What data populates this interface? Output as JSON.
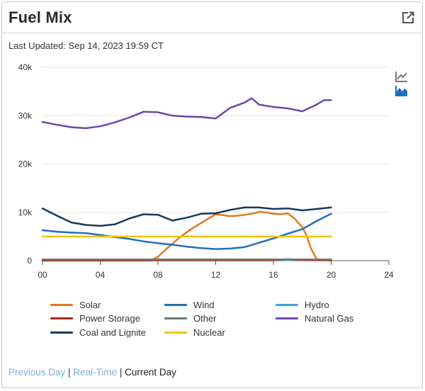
{
  "header": {
    "title": "Fuel Mix"
  },
  "last_updated": "Last Updated: Sep 14, 2023 19:59 CT",
  "footer": {
    "previous_day": "Previous Day",
    "separator1": " | ",
    "real_time": "Real-Time",
    "separator2": " | ",
    "current_day": "Current Day",
    "link_color": "#7fb0d8"
  },
  "tool_icons": [
    "line-chart-icon",
    "area-chart-icon"
  ],
  "chart_data": {
    "type": "line",
    "x_range": [
      0,
      24
    ],
    "x_ticks": [
      "00",
      "04",
      "08",
      "12",
      "16",
      "20",
      "24"
    ],
    "x_tick_values": [
      0,
      4,
      8,
      12,
      16,
      20,
      24
    ],
    "ylim": [
      0,
      40000
    ],
    "y_ticks": [
      "0",
      "10k",
      "20k",
      "30k",
      "40k"
    ],
    "y_tick_values": [
      0,
      10000,
      20000,
      30000,
      40000
    ],
    "grid": true,
    "legend_position": "bottom",
    "series": [
      {
        "name": "Solar",
        "color": "#e07a1f",
        "x": [
          0,
          7.5,
          8,
          8.5,
          9,
          9.5,
          10,
          10.5,
          11,
          11.5,
          12,
          12.5,
          13,
          13.5,
          14,
          14.5,
          15,
          15.5,
          16,
          16.5,
          17,
          17.5,
          18,
          18.3,
          18.6,
          19,
          20
        ],
        "y": [
          0,
          0,
          800,
          2200,
          3500,
          4800,
          5900,
          6900,
          7800,
          8700,
          9600,
          9400,
          9200,
          9300,
          9500,
          9700,
          10100,
          10000,
          9700,
          9600,
          9800,
          8600,
          6900,
          5200,
          2500,
          300,
          0
        ]
      },
      {
        "name": "Wind",
        "color": "#1f6fc0",
        "x": [
          0,
          1,
          2,
          3,
          4,
          5,
          6,
          7,
          8,
          9,
          10,
          11,
          12,
          13,
          14,
          15,
          16,
          17,
          18,
          19,
          20
        ],
        "y": [
          6300,
          6000,
          5800,
          5700,
          5300,
          4900,
          4500,
          4000,
          3600,
          3300,
          2900,
          2600,
          2400,
          2500,
          2800,
          3700,
          4600,
          5600,
          6500,
          8200,
          9700
        ]
      },
      {
        "name": "Hydro",
        "color": "#3aa6d6",
        "x": [
          0,
          20
        ],
        "y": [
          150,
          150
        ]
      },
      {
        "name": "Power Storage",
        "color": "#a52a1c",
        "x": [
          0,
          16,
          16.5,
          17,
          17.5,
          18,
          20
        ],
        "y": [
          80,
          80,
          200,
          300,
          200,
          120,
          80
        ]
      },
      {
        "name": "Other",
        "color": "#6e7a78",
        "x": [
          0,
          20
        ],
        "y": [
          250,
          250
        ]
      },
      {
        "name": "Natural Gas",
        "color": "#6a4aaa",
        "x": [
          0,
          1,
          2,
          3,
          4,
          5,
          6,
          7,
          8,
          9,
          10,
          11,
          12,
          13,
          14,
          14.5,
          15,
          16,
          17,
          18,
          19,
          19.5,
          20
        ],
        "y": [
          28700,
          28100,
          27600,
          27400,
          27800,
          28600,
          29600,
          30800,
          30700,
          30000,
          29800,
          29700,
          29400,
          31600,
          32700,
          33600,
          32300,
          31800,
          31500,
          30900,
          32300,
          33200,
          33200
        ]
      },
      {
        "name": "Coal and Lignite",
        "color": "#163a5c",
        "x": [
          0,
          1,
          2,
          3,
          4,
          5,
          6,
          7,
          8,
          9,
          10,
          11,
          12,
          13,
          14,
          15,
          16,
          17,
          18,
          19,
          20
        ],
        "y": [
          10800,
          9300,
          7900,
          7400,
          7200,
          7500,
          8700,
          9600,
          9500,
          8300,
          8900,
          9700,
          9800,
          10500,
          11000,
          11000,
          10700,
          10800,
          10400,
          10700,
          11000
        ]
      },
      {
        "name": "Nuclear",
        "color": "#f2c400",
        "x": [
          0,
          20
        ],
        "y": [
          5000,
          5000
        ]
      }
    ]
  }
}
